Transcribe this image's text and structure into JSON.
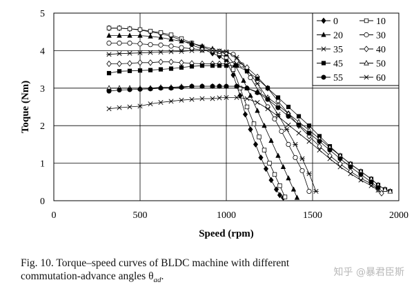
{
  "chart_data": {
    "type": "line",
    "title": "",
    "xlabel": "Speed (rpm)",
    "ylabel": "Toque (Nm)",
    "xlim": [
      0,
      2000
    ],
    "ylim": [
      0,
      5
    ],
    "xticks": [
      0,
      500,
      1000,
      1500,
      2000
    ],
    "yticks": [
      0,
      1,
      2,
      3,
      4,
      5
    ],
    "grid": true,
    "legend_position": "top-right",
    "series": [
      {
        "name": "0",
        "marker": "diamond-filled",
        "x": [
          320,
          380,
          440,
          500,
          560,
          620,
          680,
          740,
          800,
          860,
          920,
          960,
          1000,
          1040,
          1080,
          1110,
          1140,
          1170,
          1200,
          1230,
          1260,
          1290,
          1310,
          1330
        ],
        "y": [
          4.6,
          4.6,
          4.58,
          4.55,
          4.5,
          4.45,
          4.38,
          4.28,
          4.15,
          4.05,
          3.93,
          3.85,
          3.72,
          3.35,
          2.8,
          2.3,
          1.9,
          1.5,
          1.15,
          0.85,
          0.55,
          0.3,
          0.15,
          0.08
        ]
      },
      {
        "name": "10",
        "marker": "square-open",
        "x": [
          320,
          380,
          440,
          500,
          560,
          620,
          680,
          740,
          800,
          860,
          920,
          960,
          1000,
          1040,
          1080,
          1120,
          1160,
          1190,
          1220,
          1250,
          1280,
          1310,
          1340
        ],
        "y": [
          4.6,
          4.6,
          4.58,
          4.56,
          4.52,
          4.48,
          4.42,
          4.32,
          4.2,
          4.1,
          4.0,
          3.92,
          3.82,
          3.5,
          3.0,
          2.5,
          2.05,
          1.7,
          1.35,
          1.0,
          0.7,
          0.4,
          0.1
        ]
      },
      {
        "name": "20",
        "marker": "triangle-filled",
        "x": [
          320,
          380,
          440,
          500,
          560,
          620,
          680,
          740,
          800,
          860,
          920,
          960,
          1000,
          1050,
          1100,
          1140,
          1180,
          1220,
          1260,
          1300,
          1330,
          1360,
          1390,
          1410
        ],
        "y": [
          4.4,
          4.4,
          4.4,
          4.4,
          4.38,
          4.35,
          4.3,
          4.25,
          4.2,
          4.12,
          4.05,
          3.98,
          3.9,
          3.62,
          3.2,
          2.8,
          2.4,
          2.0,
          1.6,
          1.2,
          0.9,
          0.6,
          0.3,
          0.08
        ]
      },
      {
        "name": "30",
        "marker": "circle-open",
        "x": [
          320,
          380,
          440,
          500,
          560,
          620,
          680,
          740,
          800,
          860,
          920,
          960,
          1000,
          1040,
          1090,
          1140,
          1190,
          1240,
          1280,
          1320,
          1360,
          1400,
          1440,
          1480
        ],
        "y": [
          4.2,
          4.2,
          4.2,
          4.18,
          4.16,
          4.15,
          4.12,
          4.08,
          4.05,
          4.02,
          4.0,
          3.98,
          3.95,
          3.9,
          3.62,
          3.28,
          2.9,
          2.5,
          2.18,
          1.85,
          1.5,
          1.15,
          0.8,
          0.25
        ]
      },
      {
        "name": "35",
        "marker": "asterisk",
        "x": [
          320,
          380,
          440,
          500,
          560,
          620,
          680,
          740,
          800,
          860,
          920,
          960,
          1000,
          1060,
          1120,
          1180,
          1240,
          1300,
          1350,
          1400,
          1440,
          1480,
          1520
        ],
        "y": [
          3.9,
          3.92,
          3.93,
          3.94,
          3.95,
          3.96,
          3.97,
          3.98,
          4.0,
          4.0,
          4.0,
          3.99,
          3.97,
          3.82,
          3.5,
          3.12,
          2.72,
          2.3,
          1.9,
          1.5,
          1.12,
          0.72,
          0.25
        ]
      },
      {
        "name": "40",
        "marker": "diamond-open",
        "x": [
          320,
          380,
          440,
          500,
          560,
          620,
          680,
          740,
          800,
          860,
          920,
          960,
          1000,
          1060,
          1120,
          1180,
          1240,
          1300,
          1360,
          1420,
          1480,
          1540,
          1600,
          1660,
          1720,
          1780,
          1840,
          1880,
          1900
        ],
        "y": [
          3.65,
          3.65,
          3.66,
          3.68,
          3.68,
          3.7,
          3.7,
          3.68,
          3.66,
          3.65,
          3.65,
          3.65,
          3.65,
          3.72,
          3.55,
          3.3,
          3.0,
          2.65,
          2.32,
          2.0,
          1.72,
          1.45,
          1.2,
          0.98,
          0.78,
          0.6,
          0.45,
          0.3,
          0.2
        ]
      },
      {
        "name": "45",
        "marker": "square-filled",
        "x": [
          320,
          380,
          440,
          500,
          560,
          620,
          680,
          740,
          800,
          860,
          920,
          960,
          1000,
          1060,
          1120,
          1180,
          1240,
          1300,
          1360,
          1420,
          1480,
          1540,
          1600,
          1660,
          1720,
          1780,
          1840,
          1880,
          1920,
          1950
        ],
        "y": [
          3.4,
          3.45,
          3.46,
          3.47,
          3.48,
          3.5,
          3.52,
          3.55,
          3.58,
          3.6,
          3.6,
          3.6,
          3.6,
          3.6,
          3.45,
          3.25,
          3.0,
          2.75,
          2.5,
          2.25,
          2.0,
          1.72,
          1.45,
          1.2,
          0.98,
          0.78,
          0.58,
          0.42,
          0.3,
          0.25
        ]
      },
      {
        "name": "50",
        "marker": "triangle-open",
        "x": [
          320,
          380,
          440,
          500,
          560,
          620,
          680,
          740,
          800,
          860,
          920,
          960,
          1000,
          1060,
          1120,
          1180,
          1240,
          1300,
          1360,
          1420,
          1480,
          1540,
          1600,
          1660,
          1720,
          1780,
          1840,
          1880,
          1920,
          1950
        ],
        "y": [
          3.0,
          3.0,
          3.0,
          3.0,
          3.0,
          3.02,
          3.02,
          3.04,
          3.05,
          3.05,
          3.05,
          3.05,
          3.05,
          3.05,
          3.0,
          2.9,
          2.75,
          2.55,
          2.32,
          2.1,
          1.88,
          1.65,
          1.42,
          1.2,
          0.98,
          0.78,
          0.58,
          0.42,
          0.3,
          0.25
        ]
      },
      {
        "name": "55",
        "marker": "circle-filled",
        "x": [
          320,
          380,
          440,
          500,
          560,
          620,
          680,
          740,
          800,
          860,
          920,
          960,
          1000,
          1060,
          1120,
          1180,
          1240,
          1300,
          1360,
          1420,
          1480,
          1540,
          1600,
          1660,
          1720,
          1780,
          1840,
          1880
        ],
        "y": [
          2.92,
          2.95,
          2.96,
          2.97,
          2.98,
          3.0,
          3.0,
          3.02,
          3.05,
          3.05,
          3.05,
          3.05,
          3.05,
          3.05,
          3.0,
          2.88,
          2.7,
          2.48,
          2.25,
          2.02,
          1.8,
          1.58,
          1.35,
          1.12,
          0.9,
          0.7,
          0.5,
          0.35
        ]
      },
      {
        "name": "60",
        "marker": "x",
        "x": [
          320,
          380,
          440,
          500,
          560,
          620,
          680,
          740,
          800,
          860,
          920,
          960,
          1000,
          1060,
          1120,
          1180,
          1240,
          1300,
          1360,
          1420,
          1480,
          1540,
          1600,
          1660,
          1720,
          1780,
          1840,
          1880
        ],
        "y": [
          2.45,
          2.48,
          2.5,
          2.52,
          2.58,
          2.62,
          2.65,
          2.68,
          2.7,
          2.72,
          2.72,
          2.74,
          2.75,
          2.75,
          2.72,
          2.62,
          2.45,
          2.25,
          2.02,
          1.8,
          1.58,
          1.35,
          1.12,
          0.9,
          0.72,
          0.55,
          0.4,
          0.28
        ]
      }
    ]
  },
  "caption": {
    "line1": "Fig.  10.  Torque–speed  curves  of  BLDC  machine  with  different",
    "line2": "commutation-advance angles θ",
    "subscript": "ad",
    "end": "."
  },
  "watermark": "知乎 @暴君臣斯"
}
